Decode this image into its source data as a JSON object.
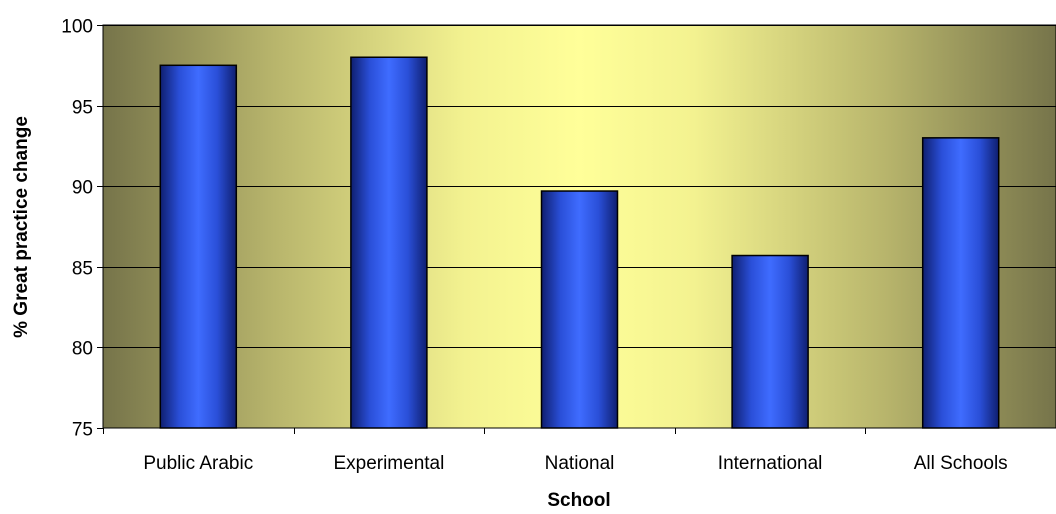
{
  "chart_data": {
    "type": "bar",
    "title": "",
    "xlabel": "School",
    "ylabel": "% Great practice change",
    "categories": [
      "Public Arabic",
      "Experimental",
      "National",
      "International",
      "All Schools"
    ],
    "values": [
      97.5,
      98.0,
      89.7,
      85.7,
      93.0
    ],
    "ylim": [
      75,
      100
    ],
    "yticks": [
      75,
      80,
      85,
      90,
      95,
      100
    ],
    "grid": true,
    "legend": "none",
    "colors": {
      "bar_dark": "#10207a",
      "bar_light": "#3f6cff",
      "background_edge": "#7a7848",
      "background_center": "#ffff99",
      "gridline": "#000000"
    }
  }
}
